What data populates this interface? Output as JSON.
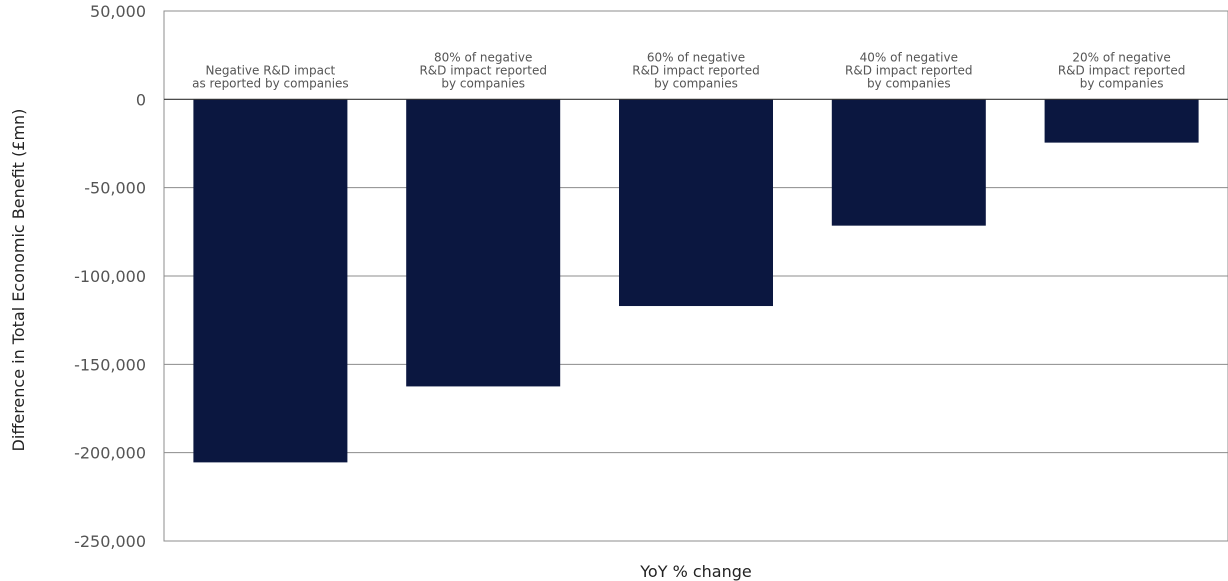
{
  "chart_data": {
    "type": "bar",
    "title": "",
    "xlabel": "YoY % change",
    "ylabel": "Difference in Total Economic Benefit (£mn)",
    "ylim": [
      -250000,
      50000
    ],
    "yticks": [
      50000,
      0,
      -50000,
      -100000,
      -150000,
      -200000,
      -250000
    ],
    "ytick_labels": [
      "50,000",
      "0",
      "-50,000",
      "-100,000",
      "-150,000",
      "-200,000",
      "-250,000"
    ],
    "grid": true,
    "categories": [
      [
        "Negative R&D impact",
        "as reported by companies"
      ],
      [
        "80% of negative",
        "R&D impact reported",
        "by companies"
      ],
      [
        "60% of negative",
        "R&D impact reported",
        "by companies"
      ],
      [
        "40% of negative",
        "R&D impact reported",
        "by companies"
      ],
      [
        "20% of negative",
        "R&D impact reported",
        "by companies"
      ]
    ],
    "values": [
      -205500,
      -162500,
      -117000,
      -71500,
      -24500
    ],
    "colors": {
      "bar": "#0b1740",
      "grid": "#8c8c8c",
      "frame": "#8c8c8c"
    }
  }
}
